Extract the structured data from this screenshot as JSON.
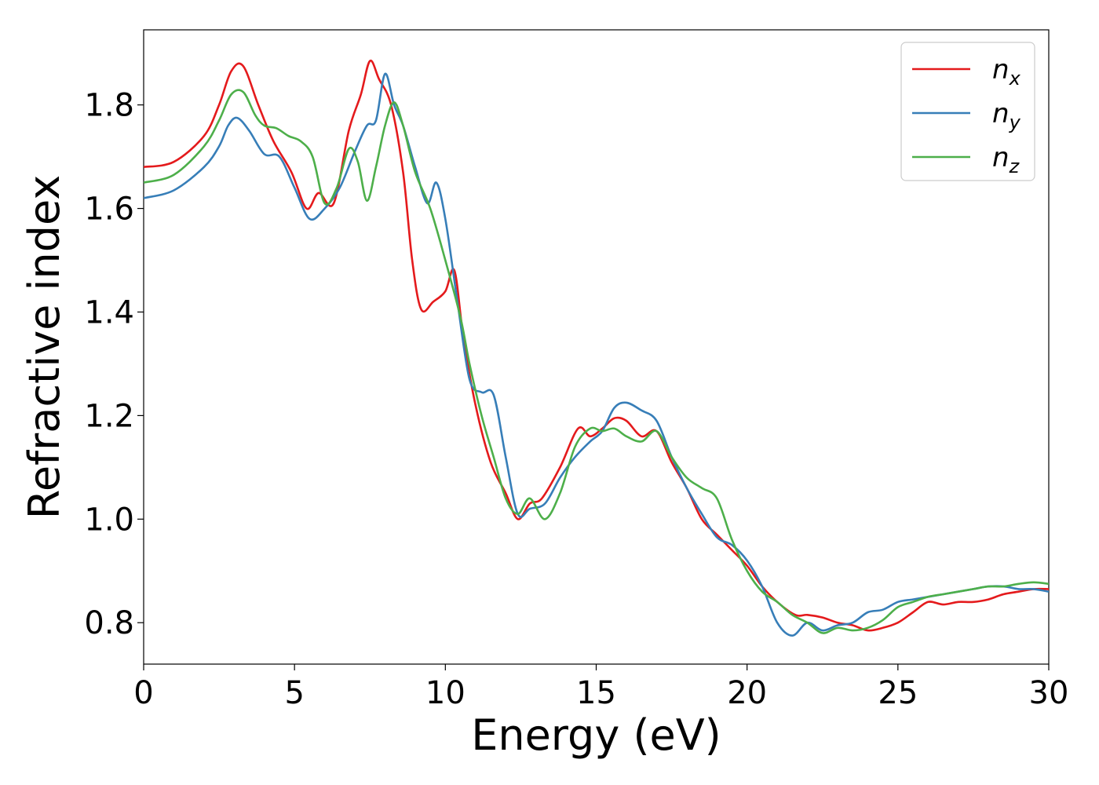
{
  "chart_data": {
    "type": "line",
    "xlabel": "Energy (eV)",
    "ylabel": "Refractive index",
    "xlim": [
      0,
      30
    ],
    "ylim": [
      0.72,
      1.945
    ],
    "xticks": [
      0,
      5,
      10,
      15,
      20,
      25,
      30
    ],
    "yticks": [
      0.8,
      1.0,
      1.2,
      1.4,
      1.6,
      1.8
    ],
    "xtick_labels": [
      "0",
      "5",
      "10",
      "15",
      "20",
      "25",
      "30"
    ],
    "ytick_labels": [
      "0.8",
      "1.0",
      "1.2",
      "1.4",
      "1.6",
      "1.8"
    ],
    "grid": false,
    "legend_position": "top-right",
    "series": [
      {
        "name": "n",
        "subscript": "x",
        "color": "#e41a1c",
        "x": [
          0,
          1,
          2,
          2.5,
          2.9,
          3.3,
          3.8,
          4.3,
          4.9,
          5.4,
          5.8,
          6.3,
          6.8,
          7.2,
          7.5,
          7.8,
          8.2,
          8.6,
          8.9,
          9.2,
          9.6,
          10.0,
          10.3,
          10.6,
          11.0,
          11.5,
          12.0,
          12.4,
          12.8,
          13.2,
          13.8,
          14.4,
          14.8,
          15.2,
          15.6,
          16.0,
          16.5,
          17.0,
          17.5,
          18.0,
          18.5,
          19.0,
          19.5,
          20.0,
          20.5,
          21.0,
          21.6,
          22.0,
          22.5,
          23.0,
          23.5,
          24.0,
          24.5,
          25.0,
          25.5,
          26.0,
          26.5,
          27.0,
          27.5,
          28.0,
          28.5,
          29.0,
          29.5,
          30.0
        ],
        "y": [
          1.68,
          1.69,
          1.74,
          1.8,
          1.865,
          1.875,
          1.8,
          1.73,
          1.67,
          1.6,
          1.63,
          1.61,
          1.75,
          1.82,
          1.885,
          1.85,
          1.8,
          1.67,
          1.5,
          1.405,
          1.42,
          1.44,
          1.48,
          1.35,
          1.22,
          1.11,
          1.05,
          1.0,
          1.03,
          1.04,
          1.1,
          1.175,
          1.16,
          1.175,
          1.195,
          1.19,
          1.16,
          1.17,
          1.11,
          1.06,
          1.0,
          0.97,
          0.94,
          0.91,
          0.87,
          0.84,
          0.815,
          0.815,
          0.81,
          0.8,
          0.795,
          0.785,
          0.79,
          0.8,
          0.82,
          0.84,
          0.835,
          0.84,
          0.84,
          0.845,
          0.855,
          0.86,
          0.865,
          0.865
        ]
      },
      {
        "name": "n",
        "subscript": "y",
        "color": "#377eb8",
        "x": [
          0,
          1,
          2,
          2.5,
          2.8,
          3.1,
          3.5,
          4.0,
          4.5,
          5.0,
          5.5,
          6.0,
          6.5,
          7.0,
          7.4,
          7.7,
          8.0,
          8.3,
          8.6,
          9.0,
          9.4,
          9.7,
          10.0,
          10.4,
          10.8,
          11.2,
          11.6,
          12.0,
          12.4,
          12.8,
          13.3,
          13.8,
          14.3,
          14.8,
          15.2,
          15.6,
          16.0,
          16.5,
          17.0,
          17.5,
          18.0,
          18.5,
          19.0,
          19.5,
          20.0,
          20.5,
          21.0,
          21.5,
          22.0,
          22.5,
          23.0,
          23.5,
          24.0,
          24.5,
          25.0,
          25.5,
          26.0,
          26.5,
          27.0,
          27.5,
          28.0,
          28.5,
          29.0,
          29.5,
          30.0
        ],
        "y": [
          1.62,
          1.635,
          1.68,
          1.72,
          1.76,
          1.775,
          1.75,
          1.705,
          1.7,
          1.64,
          1.58,
          1.6,
          1.64,
          1.71,
          1.76,
          1.77,
          1.86,
          1.8,
          1.76,
          1.68,
          1.61,
          1.65,
          1.58,
          1.42,
          1.27,
          1.245,
          1.24,
          1.12,
          1.01,
          1.02,
          1.03,
          1.08,
          1.12,
          1.15,
          1.17,
          1.215,
          1.225,
          1.21,
          1.19,
          1.12,
          1.06,
          1.01,
          0.965,
          0.95,
          0.92,
          0.87,
          0.8,
          0.775,
          0.8,
          0.785,
          0.795,
          0.8,
          0.82,
          0.825,
          0.84,
          0.845,
          0.85,
          0.855,
          0.86,
          0.865,
          0.87,
          0.87,
          0.865,
          0.865,
          0.86
        ]
      },
      {
        "name": "n",
        "subscript": "z",
        "color": "#4daf4a",
        "x": [
          0,
          1,
          2,
          2.5,
          2.9,
          3.3,
          3.7,
          4.0,
          4.4,
          4.8,
          5.2,
          5.6,
          6.0,
          6.4,
          6.8,
          7.1,
          7.4,
          7.7,
          8.0,
          8.3,
          8.6,
          9.0,
          9.5,
          10.0,
          10.5,
          10.8,
          11.2,
          11.6,
          12.0,
          12.4,
          12.8,
          13.3,
          13.8,
          14.3,
          14.8,
          15.2,
          15.6,
          16.0,
          16.5,
          17.0,
          17.5,
          18.0,
          18.5,
          19.0,
          19.5,
          20.0,
          20.5,
          21.0,
          21.5,
          22.0,
          22.5,
          23.0,
          23.5,
          24.0,
          24.5,
          25.0,
          25.5,
          26.0,
          26.5,
          27.0,
          27.5,
          28.0,
          28.5,
          29.0,
          29.5,
          30.0
        ],
        "y": [
          1.65,
          1.665,
          1.72,
          1.77,
          1.82,
          1.825,
          1.78,
          1.76,
          1.755,
          1.74,
          1.73,
          1.7,
          1.61,
          1.64,
          1.715,
          1.69,
          1.615,
          1.68,
          1.76,
          1.805,
          1.76,
          1.67,
          1.6,
          1.5,
          1.39,
          1.3,
          1.2,
          1.12,
          1.04,
          1.01,
          1.04,
          1.0,
          1.05,
          1.14,
          1.175,
          1.17,
          1.175,
          1.16,
          1.15,
          1.17,
          1.12,
          1.08,
          1.06,
          1.04,
          0.96,
          0.9,
          0.86,
          0.84,
          0.815,
          0.8,
          0.78,
          0.79,
          0.785,
          0.79,
          0.805,
          0.83,
          0.84,
          0.85,
          0.855,
          0.86,
          0.865,
          0.87,
          0.87,
          0.875,
          0.878,
          0.875
        ]
      }
    ]
  }
}
